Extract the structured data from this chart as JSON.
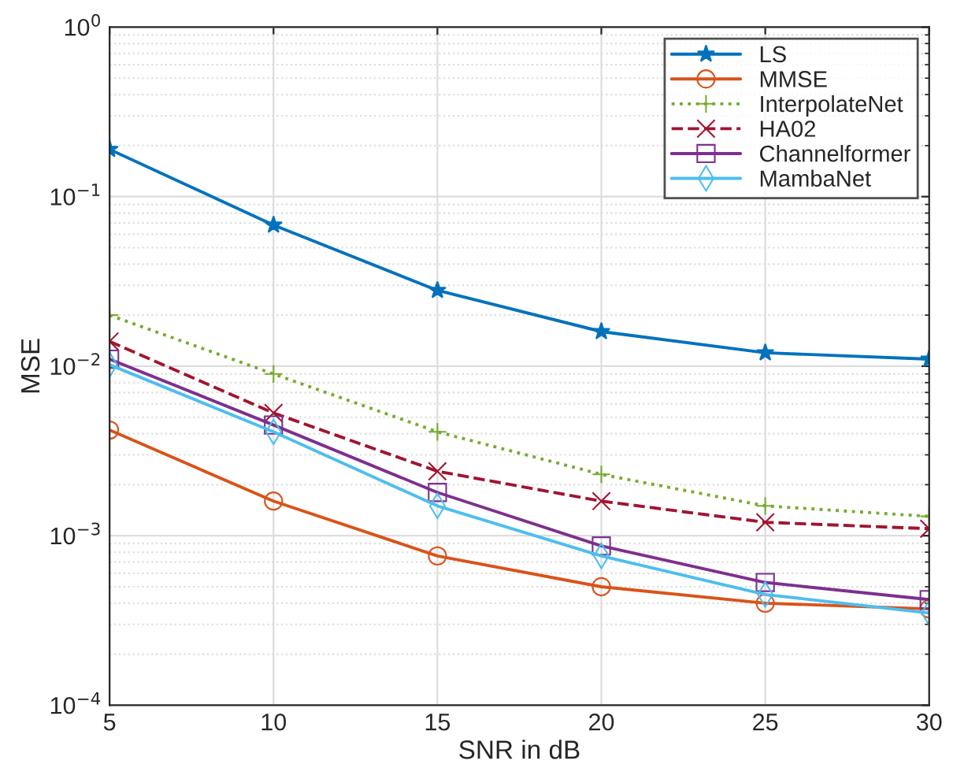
{
  "chart_data": {
    "type": "line",
    "xlabel": "SNR in dB",
    "ylabel": "MSE",
    "x": [
      5,
      10,
      15,
      20,
      25,
      30
    ],
    "series": [
      {
        "name": "LS",
        "color": "#0072bd",
        "marker": "star",
        "line_style": "solid",
        "values": [
          0.19,
          0.068,
          0.028,
          0.016,
          0.012,
          0.011
        ]
      },
      {
        "name": "MMSE",
        "color": "#d95319",
        "marker": "circle",
        "line_style": "solid",
        "values": [
          0.0042,
          0.0016,
          0.00076,
          0.0005,
          0.0004,
          0.00037
        ]
      },
      {
        "name": "InterpolateNet",
        "color": "#77ac30",
        "marker": "plus",
        "line_style": "dotted",
        "values": [
          0.02,
          0.009,
          0.0041,
          0.0023,
          0.0015,
          0.0013
        ]
      },
      {
        "name": "HA02",
        "color": "#a2142f",
        "marker": "cross",
        "line_style": "dashed",
        "values": [
          0.014,
          0.0053,
          0.0024,
          0.0016,
          0.0012,
          0.0011
        ]
      },
      {
        "name": "Channelformer",
        "color": "#7e2f8e",
        "marker": "square",
        "line_style": "solid",
        "values": [
          0.011,
          0.0045,
          0.0018,
          0.00087,
          0.00053,
          0.00042
        ]
      },
      {
        "name": "MambaNet",
        "color": "#4dbeee",
        "marker": "diamond",
        "line_style": "solid",
        "values": [
          0.0102,
          0.0041,
          0.0015,
          0.00076,
          0.00045,
          0.00035
        ]
      }
    ],
    "log": "y",
    "xlim": [
      5,
      30
    ],
    "xticks": [
      5,
      10,
      15,
      20,
      25,
      30
    ],
    "ylim": [
      0.0001,
      1
    ],
    "yticks": [
      {
        "value": 0.0001,
        "label": "10$^{−4}$"
      },
      {
        "value": 0.001,
        "label": "10$^{−3}$"
      },
      {
        "value": 0.01,
        "label": "10$^{−2}$"
      },
      {
        "value": 0.1,
        "label": "10$^{−1}$"
      },
      {
        "value": 1,
        "label": "10$^{0}$"
      }
    ],
    "grid": true,
    "legend": "top right"
  }
}
